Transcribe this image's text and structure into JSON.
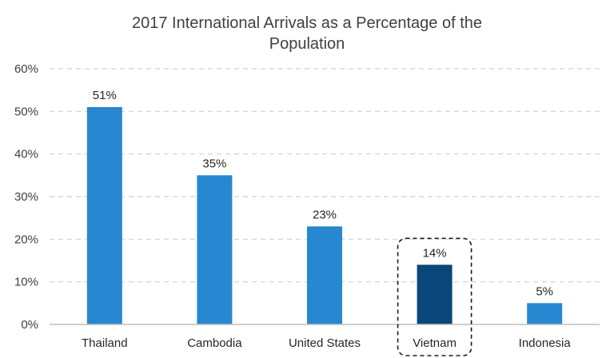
{
  "chart_data": {
    "type": "bar",
    "title_lines": [
      "2017 International Arrivals as a Percentage of the",
      "Population"
    ],
    "categories": [
      "Thailand",
      "Cambodia",
      "United States",
      "Vietnam",
      "Indonesia"
    ],
    "values": [
      51,
      35,
      23,
      14,
      5
    ],
    "value_labels": [
      "51%",
      "35%",
      "23%",
      "14%",
      "5%"
    ],
    "ylim": [
      0,
      60
    ],
    "y_ticks": [
      0,
      10,
      20,
      30,
      40,
      50,
      60
    ],
    "y_tick_labels": [
      "0%",
      "10%",
      "20%",
      "30%",
      "40%",
      "50%",
      "60%"
    ],
    "xlabel": "",
    "ylabel": "",
    "grid": "horizontal dashed",
    "highlighted_category": "Vietnam",
    "colors": {
      "bar": "#2787d1",
      "highlight_bar": "#0a4677",
      "grid": "#d0d0d0",
      "axis": "#bfbfbf",
      "highlight_box": "#1a1a1a"
    }
  }
}
